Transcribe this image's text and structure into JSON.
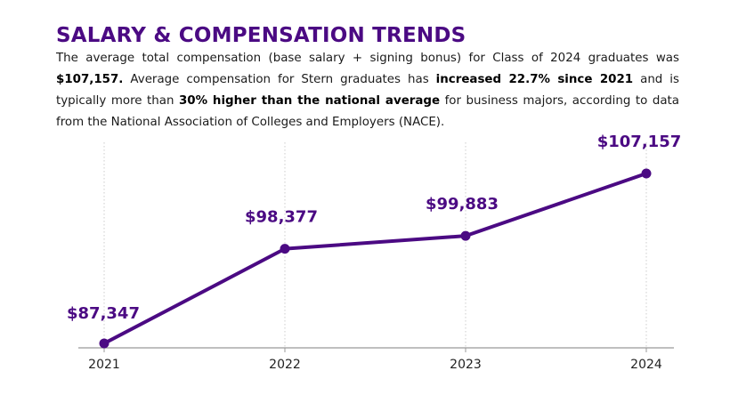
{
  "heading": "SALARY & COMPENSATION TRENDS",
  "intro": {
    "p1": "The average total compensation (base salary + signing bonus) for Class of 2024 graduates was ",
    "b1": "$107,157.",
    "p2": " Average compensation for Stern graduates has ",
    "b2": "increased 22.7% since 2021",
    "p3": " and is typically more than ",
    "b3": "30% higher than the national average",
    "p4": " for business majors, according to data from the National Association of Colleges and Employers (NACE)."
  },
  "colors": {
    "accent": "#4b0a83",
    "axis": "#999999",
    "grid": "#cccccc"
  },
  "chart_data": {
    "type": "line",
    "categories": [
      "2021",
      "2022",
      "2023",
      "2024"
    ],
    "values": [
      87347,
      98377,
      99883,
      107157
    ],
    "data_labels": [
      "$87,347",
      "$98,377",
      "$99,883",
      "$107,157"
    ],
    "ylim": [
      87347,
      107157
    ],
    "grid_x": true,
    "legend": "none"
  }
}
